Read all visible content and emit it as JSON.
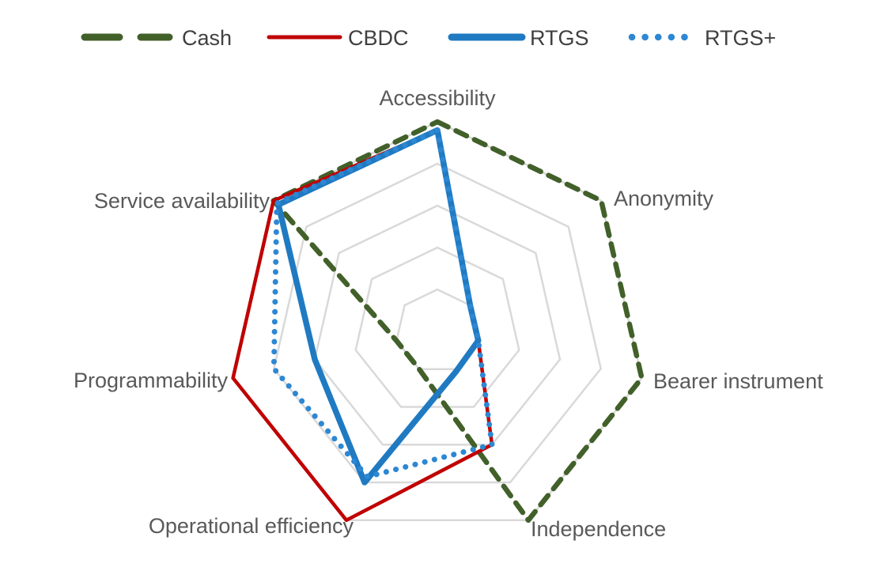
{
  "figure": {
    "background": "#ffffff",
    "label_color": "#595959",
    "legend_text_color": "#404040",
    "gridline_color": "#d9d9d9"
  },
  "chart_data": {
    "type": "radar",
    "title": "",
    "legend_position": "top",
    "categories": [
      "Accessibility",
      "Anonymity",
      "Bearer instrument",
      "Independence",
      "Operational efficiency",
      "Programmability",
      "Service availability"
    ],
    "scale": {
      "min": 0,
      "max": 5,
      "ring_interval": 1,
      "rings": 5,
      "gridlines": "on",
      "tick_labels": "none"
    },
    "series": [
      {
        "name": "Cash",
        "color": "#42602a",
        "style": "dashed",
        "values": [
          5,
          5,
          5,
          5,
          1,
          1,
          5
        ]
      },
      {
        "name": "CBDC",
        "color": "#c00000",
        "style": "solid",
        "values": [
          4.8,
          1,
          1,
          3,
          5,
          5,
          5
        ]
      },
      {
        "name": "RTGS",
        "color": "#1f7ac2",
        "style": "solid-thick",
        "values": [
          4.8,
          1,
          1,
          1.05,
          4,
          3,
          4.85
        ]
      },
      {
        "name": "RTGS+",
        "color": "#2d87d3",
        "style": "dotted",
        "values": [
          4.8,
          1,
          1,
          3,
          3.85,
          4,
          4.9
        ]
      }
    ]
  }
}
